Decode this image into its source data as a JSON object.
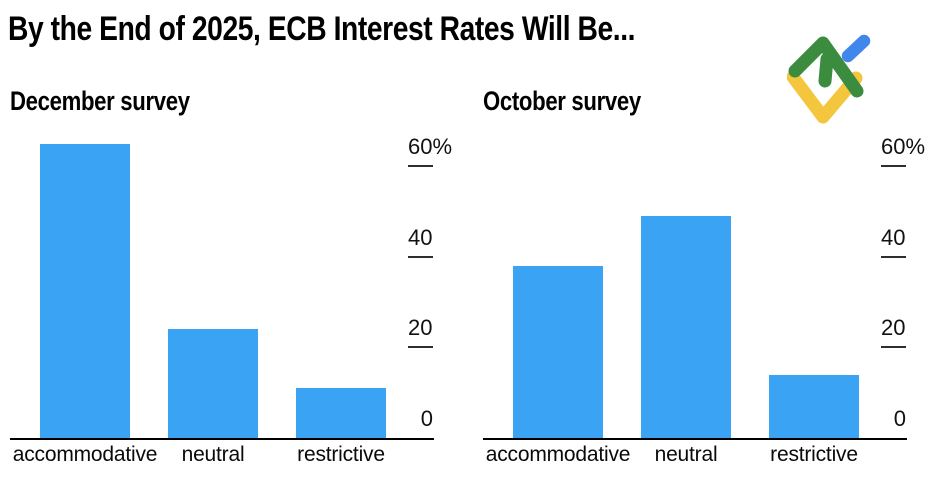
{
  "header": {
    "title": "By the End of 2025, ECB Interest Rates Will Be...",
    "logo": {
      "icon": "litefinance-logo",
      "colors": {
        "green": "#3C8C40",
        "yellow": "#F3C63E",
        "blue": "#4187EB"
      }
    }
  },
  "chart_data": [
    {
      "type": "bar",
      "title": "December survey",
      "categories": [
        "accommodative",
        "neutral",
        "restrictive"
      ],
      "values": [
        65,
        24,
        11
      ],
      "unit": "%",
      "ylim": [
        0,
        60
      ],
      "yticks": [
        {
          "label": "60%",
          "value": 60
        },
        {
          "label": "40",
          "value": 40
        },
        {
          "label": "20",
          "value": 20
        },
        {
          "label": "0",
          "value": 0
        }
      ],
      "tick_side": "right",
      "grid": false,
      "legend": false,
      "bar_color": "#3AA3F4",
      "axis_color": "#000000",
      "xlabel": "",
      "ylabel": ""
    },
    {
      "type": "bar",
      "title": "October survey",
      "categories": [
        "accommodative",
        "neutral",
        "restrictive"
      ],
      "values": [
        38,
        49,
        14
      ],
      "unit": "%",
      "ylim": [
        0,
        60
      ],
      "yticks": [
        {
          "label": "60%",
          "value": 60
        },
        {
          "label": "40",
          "value": 40
        },
        {
          "label": "20",
          "value": 20
        },
        {
          "label": "0",
          "value": 0
        }
      ],
      "tick_side": "right",
      "grid": false,
      "legend": false,
      "bar_color": "#3AA3F4",
      "axis_color": "#000000",
      "xlabel": "",
      "ylabel": ""
    }
  ]
}
